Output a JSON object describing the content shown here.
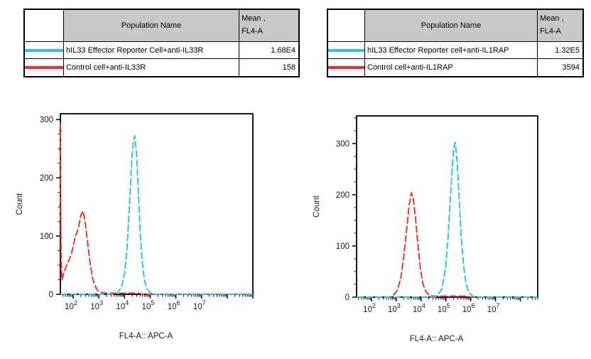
{
  "colors": {
    "series_cyan": "#27C1F0",
    "series_red": "#F92B1E",
    "table_header_bg": "#C8C8C8",
    "axis": "#000000"
  },
  "tables": [
    {
      "header": {
        "population": "Population Name",
        "mean_line1": "Mean ,",
        "mean_line2": "FL4-A"
      },
      "rows": [
        {
          "swatch_color": "#27C1F0",
          "name": "hIL33 Effector Reporter Cell+anti-IL33R",
          "mean": "1.68E4"
        },
        {
          "swatch_color": "#F92B1E",
          "name": "Control cell+anti-IL33R",
          "mean": "158"
        }
      ]
    },
    {
      "header": {
        "population": "Population Name",
        "mean_line1": "Mean ,",
        "mean_line2": "FL4-A"
      },
      "rows": [
        {
          "swatch_color": "#27C1F0",
          "name": "hIL33 Effector Reporter cell+anti-IL1RAP",
          "mean": "1.32E5"
        },
        {
          "swatch_color": "#F92B1E",
          "name": "Control cell+anti-IL1RAP",
          "mean": "3594"
        }
      ]
    }
  ],
  "chart_data": [
    {
      "type": "line",
      "title": "",
      "xlabel": "FL4-A:: APC-A",
      "ylabel": "Count",
      "x_scale": "log10",
      "xlim_log10": [
        1.5,
        9.0
      ],
      "x_labeled_decades": [
        2,
        3,
        4,
        5,
        6,
        7
      ],
      "ylim": [
        0,
        310
      ],
      "y_major_ticks": [
        0,
        100,
        200,
        300
      ],
      "y_minor_step": 25,
      "grid": false,
      "legend_position": "none",
      "series": [
        {
          "name": "hIL33 Effector Reporter Cell+anti-IL33R",
          "color": "#27C1F0",
          "mean_fl4a": "1.68E4",
          "peak_log10x": 4.4,
          "peak_count": 272,
          "points_log10x_count": [
            [
              1.5,
              0
            ],
            [
              3.6,
              0
            ],
            [
              3.75,
              4
            ],
            [
              3.88,
              12
            ],
            [
              4.0,
              35
            ],
            [
              4.1,
              80
            ],
            [
              4.2,
              160
            ],
            [
              4.28,
              230
            ],
            [
              4.35,
              265
            ],
            [
              4.4,
              272
            ],
            [
              4.46,
              245
            ],
            [
              4.53,
              185
            ],
            [
              4.6,
              115
            ],
            [
              4.68,
              60
            ],
            [
              4.76,
              28
            ],
            [
              4.86,
              10
            ],
            [
              5.0,
              3
            ],
            [
              5.15,
              0
            ],
            [
              9.0,
              0
            ]
          ]
        },
        {
          "name": "Control cell+anti-IL33R",
          "color": "#F92B1E",
          "mean_fl4a": "158",
          "peak_log10x": 2.38,
          "peak_count": 143,
          "points_log10x_count": [
            [
              1.5,
              295
            ],
            [
              1.51,
              150
            ],
            [
              1.53,
              60
            ],
            [
              1.56,
              25
            ],
            [
              1.63,
              35
            ],
            [
              1.72,
              47
            ],
            [
              1.82,
              57
            ],
            [
              1.92,
              68
            ],
            [
              2.02,
              87
            ],
            [
              2.09,
              101
            ],
            [
              2.15,
              106
            ],
            [
              2.22,
              117
            ],
            [
              2.3,
              136
            ],
            [
              2.38,
              143
            ],
            [
              2.44,
              131
            ],
            [
              2.51,
              108
            ],
            [
              2.58,
              82
            ],
            [
              2.66,
              54
            ],
            [
              2.74,
              31
            ],
            [
              2.84,
              15
            ],
            [
              2.96,
              6
            ],
            [
              3.1,
              3
            ],
            [
              3.3,
              2
            ],
            [
              4.55,
              2
            ],
            [
              4.7,
              0
            ],
            [
              9.0,
              0
            ]
          ]
        }
      ]
    },
    {
      "type": "line",
      "title": "",
      "xlabel": "FL4-A:: APC-A",
      "ylabel": "Count",
      "x_scale": "log10",
      "xlim_log10": [
        1.4,
        8.7
      ],
      "x_labeled_decades": [
        2,
        3,
        4,
        5,
        6,
        7
      ],
      "ylim": [
        0,
        354
      ],
      "y_major_ticks": [
        0,
        100,
        200,
        300
      ],
      "y_minor_step": 25,
      "grid": false,
      "legend_position": "none",
      "series": [
        {
          "name": "hIL33 Effector Reporter cell+anti-IL1RAP",
          "color": "#27C1F0",
          "mean_fl4a": "1.32E5",
          "peak_log10x": 5.38,
          "peak_count": 302,
          "points_log10x_count": [
            [
              1.4,
              0
            ],
            [
              4.55,
              0
            ],
            [
              4.7,
              5
            ],
            [
              4.85,
              18
            ],
            [
              4.98,
              55
            ],
            [
              5.08,
              112
            ],
            [
              5.18,
              192
            ],
            [
              5.26,
              256
            ],
            [
              5.33,
              295
            ],
            [
              5.38,
              302
            ],
            [
              5.45,
              266
            ],
            [
              5.53,
              196
            ],
            [
              5.61,
              122
            ],
            [
              5.71,
              62
            ],
            [
              5.81,
              26
            ],
            [
              5.93,
              9
            ],
            [
              6.08,
              2
            ],
            [
              6.2,
              0
            ],
            [
              8.7,
              0
            ]
          ]
        },
        {
          "name": "Control cell+anti-IL1RAP",
          "color": "#F92B1E",
          "mean_fl4a": "3594",
          "peak_log10x": 3.61,
          "peak_count": 204,
          "points_log10x_count": [
            [
              1.4,
              0
            ],
            [
              2.72,
              0
            ],
            [
              2.88,
              4
            ],
            [
              3.03,
              12
            ],
            [
              3.18,
              36
            ],
            [
              3.31,
              82
            ],
            [
              3.43,
              138
            ],
            [
              3.53,
              183
            ],
            [
              3.61,
              204
            ],
            [
              3.69,
              191
            ],
            [
              3.78,
              152
            ],
            [
              3.88,
              99
            ],
            [
              3.98,
              53
            ],
            [
              4.08,
              25
            ],
            [
              4.2,
              10
            ],
            [
              4.35,
              3
            ],
            [
              4.5,
              2
            ],
            [
              5.85,
              2
            ],
            [
              6.0,
              0
            ],
            [
              8.7,
              0
            ]
          ]
        }
      ]
    }
  ]
}
